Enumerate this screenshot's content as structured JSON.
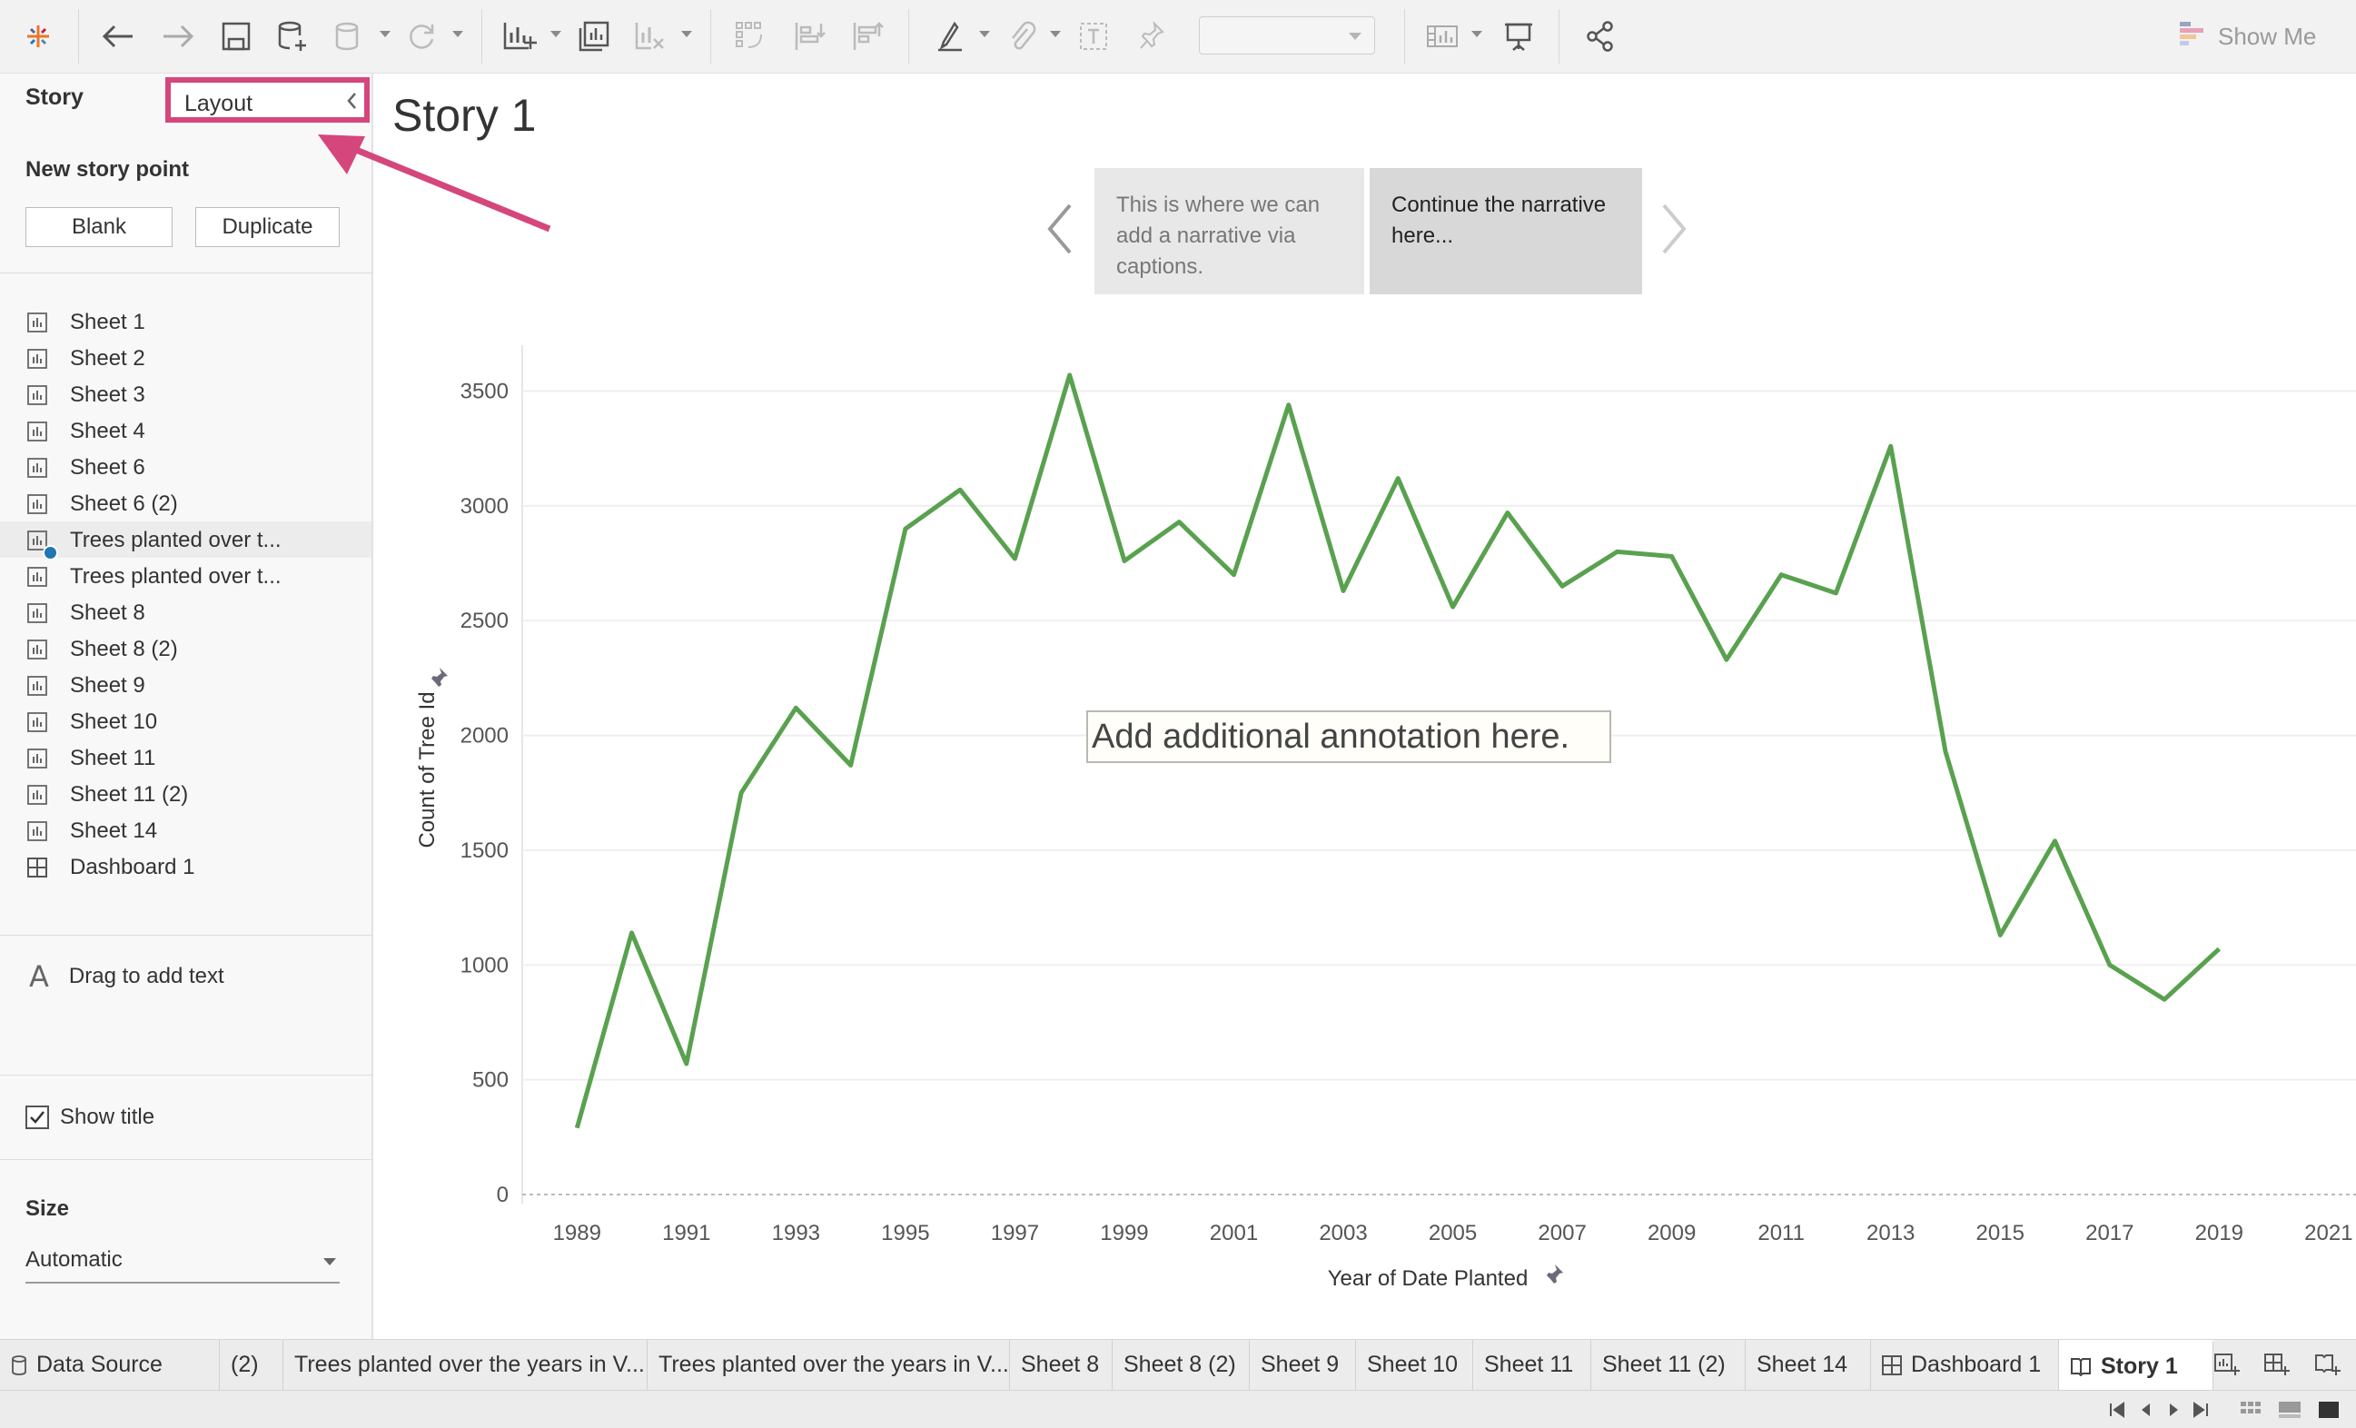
{
  "toolbar": {
    "show_me_label": "Show Me",
    "fit_value": ""
  },
  "left_panel": {
    "tab_story": "Story",
    "tab_layout": "Layout",
    "new_story_point": "New story point",
    "blank_button": "Blank",
    "duplicate_button": "Duplicate",
    "sheets": [
      {
        "label": "Sheet 1",
        "type": "sheet"
      },
      {
        "label": "Sheet 2",
        "type": "sheet"
      },
      {
        "label": "Sheet 3",
        "type": "sheet"
      },
      {
        "label": "Sheet 4",
        "type": "sheet"
      },
      {
        "label": "Sheet 6",
        "type": "sheet"
      },
      {
        "label": "Sheet 6 (2)",
        "type": "sheet"
      },
      {
        "label": "Trees planted over t...",
        "type": "sheet-in-use"
      },
      {
        "label": "Trees planted over t...",
        "type": "sheet"
      },
      {
        "label": "Sheet 8",
        "type": "sheet"
      },
      {
        "label": "Sheet 8 (2)",
        "type": "sheet"
      },
      {
        "label": "Sheet 9",
        "type": "sheet"
      },
      {
        "label": "Sheet 10",
        "type": "sheet"
      },
      {
        "label": "Sheet 11",
        "type": "sheet"
      },
      {
        "label": "Sheet 11 (2)",
        "type": "sheet"
      },
      {
        "label": "Sheet 14",
        "type": "sheet"
      },
      {
        "label": "Dashboard 1",
        "type": "dashboard"
      }
    ],
    "drag_text": "Drag to add text",
    "show_title": "Show title",
    "show_title_checked": true,
    "size_heading": "Size",
    "size_value": "Automatic"
  },
  "story": {
    "title": "Story 1",
    "captions": [
      "This is where we can add a narrative via captions.",
      "Continue the narrative here..."
    ],
    "annotation": "Add additional annotation here."
  },
  "chart_data": {
    "type": "line",
    "xlabel": "Year of Date Planted",
    "ylabel": "Count of Tree Id",
    "ylim": [
      0,
      3700
    ],
    "xlim": [
      1988,
      2021.5
    ],
    "y_ticks": [
      0,
      500,
      1000,
      1500,
      2000,
      2500,
      3000,
      3500
    ],
    "x_ticks": [
      1989,
      1991,
      1993,
      1995,
      1997,
      1999,
      2001,
      2003,
      2005,
      2007,
      2009,
      2011,
      2013,
      2015,
      2017,
      2019,
      2021
    ],
    "grid": true,
    "line_color": "#59a14f",
    "series": [
      {
        "x": [
          1989,
          1990,
          1991,
          1992,
          1993,
          1994,
          1995,
          1996,
          1997,
          1998,
          1999,
          2000,
          2001,
          2002,
          2003,
          2004,
          2005,
          2006,
          2007,
          2008,
          2009,
          2010,
          2011,
          2012,
          2013,
          2014,
          2015,
          2016,
          2017,
          2018,
          2019
        ],
        "values": [
          290,
          1140,
          570,
          1750,
          2120,
          1870,
          2900,
          3070,
          2770,
          3570,
          2760,
          2930,
          2700,
          3440,
          2630,
          3120,
          2560,
          2970,
          2650,
          2800,
          2780,
          2330,
          2700,
          2620,
          3260,
          1930,
          1130,
          1540,
          1000,
          850,
          1070
        ]
      }
    ]
  },
  "tabs": [
    {
      "label": "Data Source",
      "icon": "database-icon"
    },
    {
      "label": "(2)",
      "icon": ""
    },
    {
      "label": "Trees planted over the years in V...",
      "icon": ""
    },
    {
      "label": "Trees planted over the years in V...",
      "icon": ""
    },
    {
      "label": "Sheet 8",
      "icon": ""
    },
    {
      "label": "Sheet 8 (2)",
      "icon": ""
    },
    {
      "label": "Sheet 9",
      "icon": ""
    },
    {
      "label": "Sheet 10",
      "icon": ""
    },
    {
      "label": "Sheet 11",
      "icon": ""
    },
    {
      "label": "Sheet 11 (2)",
      "icon": ""
    },
    {
      "label": "Sheet 14",
      "icon": ""
    },
    {
      "label": "Dashboard 1",
      "icon": "dashboard-icon"
    },
    {
      "label": "Story 1",
      "icon": "story-icon"
    }
  ]
}
